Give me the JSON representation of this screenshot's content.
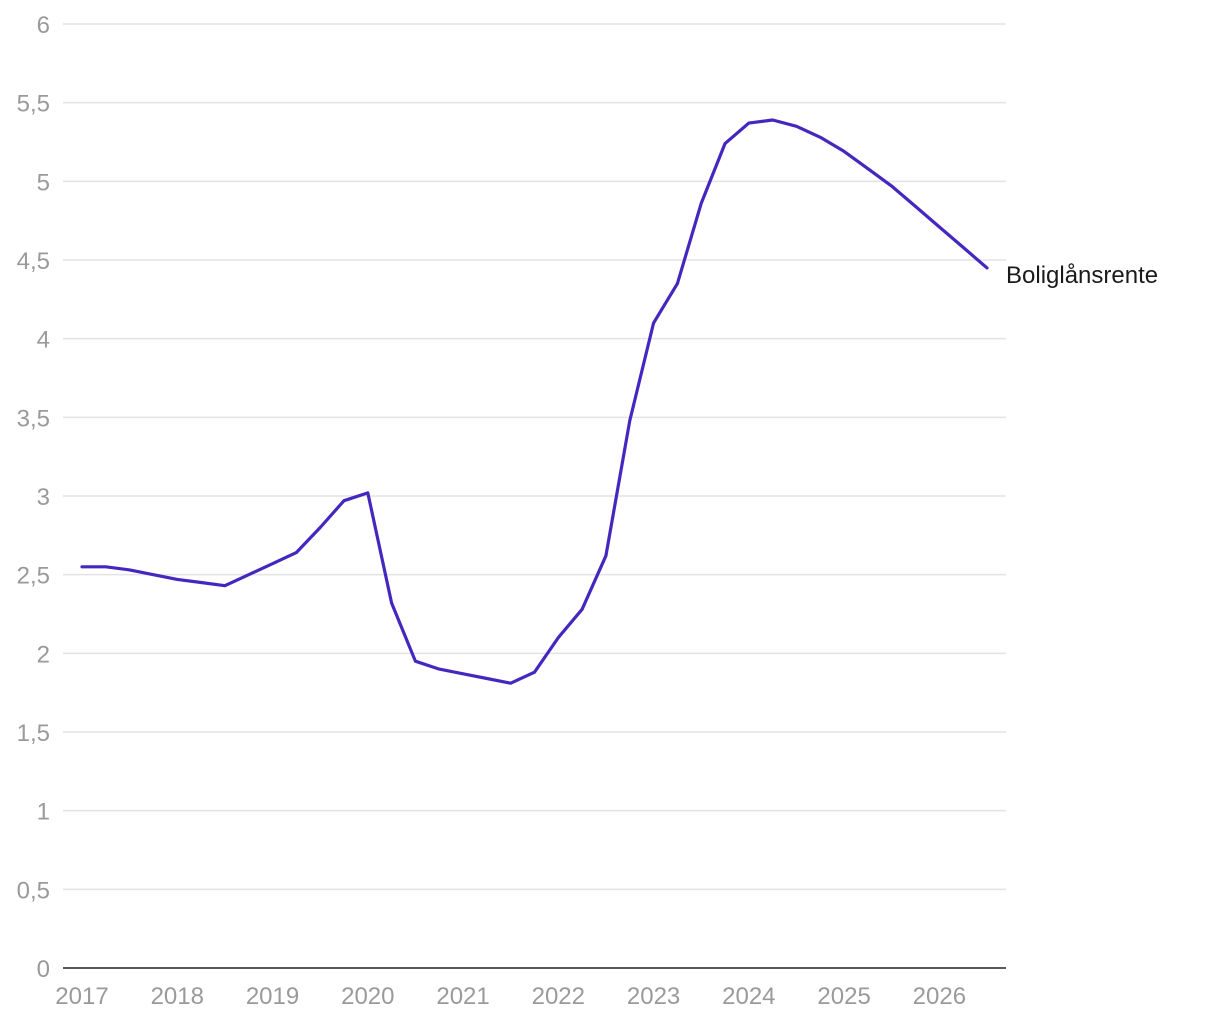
{
  "chart_data": {
    "type": "line",
    "title": "",
    "xlabel": "",
    "ylabel": "",
    "xlim": [
      2017,
      2026.5
    ],
    "ylim": [
      0,
      6
    ],
    "grid": true,
    "legend": "none",
    "x_ticks": [
      2017,
      2018,
      2019,
      2020,
      2021,
      2022,
      2023,
      2024,
      2025,
      2026
    ],
    "x_tick_labels": [
      "2017",
      "2018",
      "2019",
      "2020",
      "2021",
      "2022",
      "2023",
      "2024",
      "2025",
      "2026"
    ],
    "y_ticks": [
      0,
      0.5,
      1,
      1.5,
      2,
      2.5,
      3,
      3.5,
      4,
      4.5,
      5,
      5.5,
      6
    ],
    "y_tick_labels": [
      "0",
      "0,5",
      "1",
      "1,5",
      "2",
      "2,5",
      "3",
      "3,5",
      "4",
      "4,5",
      "5",
      "5,5",
      "6"
    ],
    "series": [
      {
        "name": "Boliglånsrente",
        "color": "#4527c0",
        "x": [
          2017.0,
          2017.25,
          2017.5,
          2017.75,
          2018.0,
          2018.25,
          2018.5,
          2018.75,
          2019.0,
          2019.25,
          2019.5,
          2019.75,
          2020.0,
          2020.25,
          2020.5,
          2020.75,
          2021.0,
          2021.25,
          2021.5,
          2021.75,
          2022.0,
          2022.25,
          2022.5,
          2022.75,
          2023.0,
          2023.25,
          2023.5,
          2023.75,
          2024.0,
          2024.25,
          2024.5,
          2024.75,
          2025.0,
          2025.25,
          2025.5,
          2025.75,
          2026.0,
          2026.25,
          2026.5
        ],
        "values": [
          2.55,
          2.55,
          2.53,
          2.5,
          2.47,
          2.45,
          2.43,
          2.5,
          2.57,
          2.64,
          2.8,
          2.97,
          3.02,
          2.32,
          1.95,
          1.9,
          1.87,
          1.84,
          1.81,
          1.88,
          2.1,
          2.28,
          2.62,
          3.48,
          4.1,
          4.35,
          4.86,
          5.24,
          5.37,
          5.39,
          5.35,
          5.28,
          5.19,
          5.08,
          4.97,
          4.84,
          4.71,
          4.58,
          4.45
        ]
      }
    ]
  }
}
